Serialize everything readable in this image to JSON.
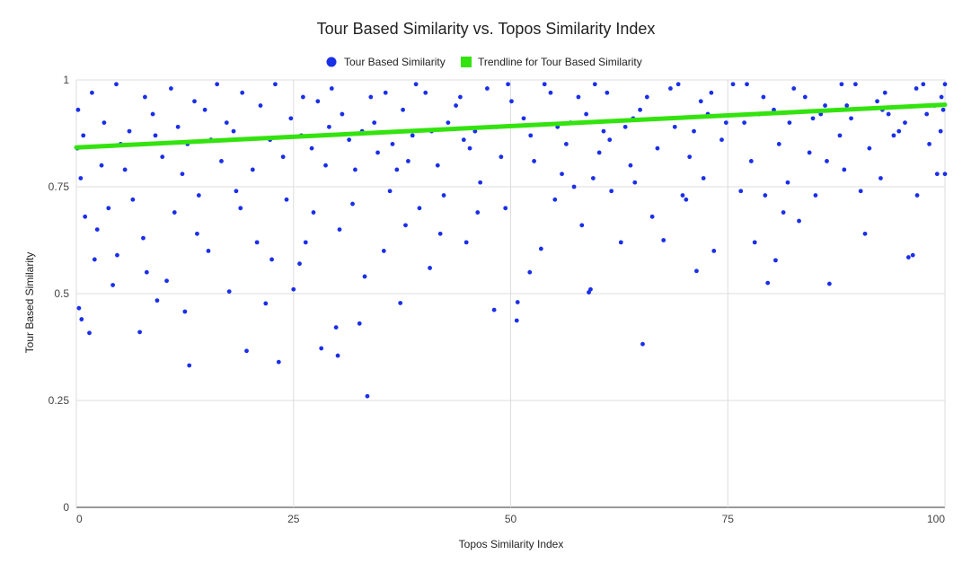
{
  "chart_data": {
    "type": "scatter",
    "title": "Tour Based Similarity vs. Topos Similarity Index",
    "xlabel": "Topos Similarity Index",
    "ylabel": "Tour Based Similarity",
    "xlim": [
      0,
      100
    ],
    "ylim": [
      0,
      1
    ],
    "x_ticks": [
      "0",
      "25",
      "50",
      "75",
      "100"
    ],
    "y_ticks": [
      "0",
      "0.25",
      "0.5",
      "0.75",
      "1"
    ],
    "x_tick_values": [
      0,
      25,
      50,
      75,
      100
    ],
    "y_tick_values": [
      0,
      0.25,
      0.5,
      0.75,
      1
    ],
    "grid": true,
    "legend_position": "top",
    "series": [
      {
        "name": "Tour Based Similarity",
        "color": "#1a2fe8",
        "points": [
          [
            0.3,
            0.466
          ],
          [
            0.6,
            0.44
          ],
          [
            1.5,
            0.408
          ],
          [
            7.3,
            0.41
          ],
          [
            9.3,
            0.484
          ],
          [
            12.5,
            0.458
          ],
          [
            13,
            0.332
          ],
          [
            19.6,
            0.366
          ],
          [
            21.8,
            0.477
          ],
          [
            23.3,
            0.34
          ],
          [
            25,
            0.51
          ],
          [
            28.2,
            0.372
          ],
          [
            29.9,
            0.421
          ],
          [
            30.1,
            0.355
          ],
          [
            32.6,
            0.43
          ],
          [
            33.5,
            0.26
          ],
          [
            33.2,
            0.54
          ],
          [
            37.3,
            0.478
          ],
          [
            48.1,
            0.462
          ],
          [
            50.7,
            0.437
          ],
          [
            50.8,
            0.48
          ],
          [
            52.2,
            0.55
          ],
          [
            59,
            0.503
          ],
          [
            59.2,
            0.51
          ],
          [
            65.2,
            0.382
          ],
          [
            71.4,
            0.553
          ],
          [
            79.6,
            0.525
          ],
          [
            86.7,
            0.523
          ],
          [
            95.8,
            0.585
          ],
          [
            96.3,
            0.59
          ],
          [
            80.5,
            0.578
          ],
          [
            2.1,
            0.58
          ],
          [
            4.2,
            0.52
          ],
          [
            8.1,
            0.55
          ],
          [
            10.4,
            0.53
          ],
          [
            15.2,
            0.6
          ],
          [
            17.6,
            0.505
          ],
          [
            22.5,
            0.58
          ],
          [
            26.4,
            0.62
          ],
          [
            35.4,
            0.6
          ],
          [
            40.7,
            0.56
          ],
          [
            44.9,
            0.62
          ],
          [
            53.5,
            0.605
          ],
          [
            58.2,
            0.66
          ],
          [
            62.7,
            0.62
          ],
          [
            67.6,
            0.625
          ],
          [
            73.4,
            0.6
          ],
          [
            78.1,
            0.62
          ],
          [
            83.2,
            0.67
          ],
          [
            90.8,
            0.64
          ],
          [
            96.8,
            0.73
          ],
          [
            1,
            0.68
          ],
          [
            3.7,
            0.7
          ],
          [
            6.5,
            0.72
          ],
          [
            11.3,
            0.69
          ],
          [
            14.1,
            0.73
          ],
          [
            18.9,
            0.7
          ],
          [
            24.2,
            0.72
          ],
          [
            27.3,
            0.69
          ],
          [
            31.8,
            0.71
          ],
          [
            36.1,
            0.74
          ],
          [
            39.5,
            0.7
          ],
          [
            42.3,
            0.73
          ],
          [
            46.5,
            0.76
          ],
          [
            49.4,
            0.7
          ],
          [
            55.1,
            0.72
          ],
          [
            57.3,
            0.75
          ],
          [
            61.6,
            0.74
          ],
          [
            64.3,
            0.76
          ],
          [
            69.8,
            0.73
          ],
          [
            72.2,
            0.77
          ],
          [
            76.5,
            0.74
          ],
          [
            81.9,
            0.76
          ],
          [
            85.1,
            0.73
          ],
          [
            88.4,
            0.79
          ],
          [
            92.6,
            0.77
          ],
          [
            99.1,
            0.78
          ],
          [
            0.5,
            0.77
          ],
          [
            2.9,
            0.8
          ],
          [
            5.6,
            0.79
          ],
          [
            9.9,
            0.82
          ],
          [
            12.2,
            0.78
          ],
          [
            16.7,
            0.81
          ],
          [
            20.3,
            0.79
          ],
          [
            23.8,
            0.82
          ],
          [
            28.7,
            0.8
          ],
          [
            32.1,
            0.79
          ],
          [
            34.7,
            0.83
          ],
          [
            38.2,
            0.81
          ],
          [
            41.6,
            0.8
          ],
          [
            45.3,
            0.84
          ],
          [
            48.9,
            0.82
          ],
          [
            52.7,
            0.81
          ],
          [
            56.4,
            0.85
          ],
          [
            60.2,
            0.83
          ],
          [
            63.8,
            0.8
          ],
          [
            66.9,
            0.84
          ],
          [
            70.6,
            0.82
          ],
          [
            74.3,
            0.86
          ],
          [
            77.7,
            0.81
          ],
          [
            80.9,
            0.85
          ],
          [
            84.4,
            0.83
          ],
          [
            87.9,
            0.87
          ],
          [
            91.3,
            0.84
          ],
          [
            94.7,
            0.88
          ],
          [
            98.2,
            0.85
          ],
          [
            0.8,
            0.87
          ],
          [
            3.2,
            0.9
          ],
          [
            6.1,
            0.88
          ],
          [
            8.8,
            0.92
          ],
          [
            11.7,
            0.89
          ],
          [
            14.8,
            0.93
          ],
          [
            17.3,
            0.9
          ],
          [
            21.2,
            0.94
          ],
          [
            24.7,
            0.91
          ],
          [
            27.8,
            0.95
          ],
          [
            30.6,
            0.92
          ],
          [
            33.9,
            0.96
          ],
          [
            37.6,
            0.93
          ],
          [
            40.2,
            0.97
          ],
          [
            43.7,
            0.94
          ],
          [
            47.3,
            0.98
          ],
          [
            50.1,
            0.95
          ],
          [
            53.9,
            0.99
          ],
          [
            57.8,
            0.96
          ],
          [
            61.1,
            0.97
          ],
          [
            64.9,
            0.93
          ],
          [
            68.4,
            0.98
          ],
          [
            71.9,
            0.95
          ],
          [
            75.6,
            0.99
          ],
          [
            79.1,
            0.96
          ],
          [
            82.6,
            0.98
          ],
          [
            86.2,
            0.94
          ],
          [
            89.7,
            0.99
          ],
          [
            93.1,
            0.97
          ],
          [
            96.7,
            0.98
          ],
          [
            99.6,
            0.96
          ],
          [
            1.8,
            0.97
          ],
          [
            4.6,
            0.99
          ],
          [
            7.9,
            0.96
          ],
          [
            10.9,
            0.98
          ],
          [
            13.6,
            0.95
          ],
          [
            16.2,
            0.99
          ],
          [
            19.1,
            0.97
          ],
          [
            22.9,
            0.99
          ],
          [
            26.1,
            0.96
          ],
          [
            29.4,
            0.98
          ],
          [
            35.6,
            0.97
          ],
          [
            39.1,
            0.99
          ],
          [
            44.2,
            0.96
          ],
          [
            49.7,
            0.99
          ],
          [
            54.6,
            0.97
          ],
          [
            59.7,
            0.99
          ],
          [
            65.7,
            0.96
          ],
          [
            69.3,
            0.99
          ],
          [
            73.1,
            0.97
          ],
          [
            77.2,
            0.99
          ],
          [
            83.9,
            0.96
          ],
          [
            88.1,
            0.99
          ],
          [
            92.2,
            0.95
          ],
          [
            97.5,
            0.99
          ],
          [
            100,
            0.99
          ],
          [
            99.8,
            0.93
          ],
          [
            99.5,
            0.88
          ],
          [
            100,
            0.78
          ],
          [
            0.2,
            0.93
          ],
          [
            0.1,
            0.84
          ],
          [
            18.4,
            0.74
          ],
          [
            36.9,
            0.79
          ],
          [
            55.9,
            0.78
          ],
          [
            66.3,
            0.68
          ],
          [
            70.2,
            0.72
          ],
          [
            79.3,
            0.73
          ],
          [
            81.4,
            0.69
          ],
          [
            86.4,
            0.81
          ],
          [
            90.3,
            0.74
          ],
          [
            94.1,
            0.87
          ],
          [
            97.9,
            0.92
          ],
          [
            59.5,
            0.77
          ],
          [
            46.2,
            0.69
          ],
          [
            41.9,
            0.64
          ],
          [
            37.9,
            0.66
          ],
          [
            30.3,
            0.65
          ],
          [
            25.7,
            0.57
          ],
          [
            20.8,
            0.62
          ],
          [
            13.9,
            0.64
          ],
          [
            7.7,
            0.63
          ],
          [
            4.7,
            0.59
          ],
          [
            2.4,
            0.65
          ],
          [
            61.4,
            0.86
          ],
          [
            63.2,
            0.89
          ],
          [
            67.8,
            0.91
          ],
          [
            71.1,
            0.88
          ],
          [
            74.8,
            0.9
          ],
          [
            78.6,
            0.92
          ],
          [
            82.1,
            0.9
          ],
          [
            85.7,
            0.92
          ],
          [
            89.2,
            0.91
          ],
          [
            92.8,
            0.93
          ],
          [
            95.4,
            0.9
          ],
          [
            98.8,
            0.94
          ],
          [
            15.5,
            0.86
          ],
          [
            18.1,
            0.88
          ],
          [
            25.9,
            0.87
          ],
          [
            29.1,
            0.89
          ],
          [
            31.4,
            0.86
          ],
          [
            34.3,
            0.9
          ],
          [
            38.7,
            0.87
          ],
          [
            42.8,
            0.9
          ],
          [
            45.9,
            0.88
          ],
          [
            51.5,
            0.91
          ],
          [
            55.4,
            0.89
          ],
          [
            58.7,
            0.92
          ],
          [
            5.1,
            0.85
          ],
          [
            9.1,
            0.87
          ],
          [
            12.8,
            0.85
          ],
          [
            22.3,
            0.86
          ],
          [
            27.1,
            0.84
          ],
          [
            32.9,
            0.88
          ],
          [
            36.4,
            0.85
          ],
          [
            40.9,
            0.88
          ],
          [
            44.6,
            0.86
          ],
          [
            48.4,
            0.89
          ],
          [
            52.3,
            0.87
          ],
          [
            56.9,
            0.9
          ],
          [
            60.7,
            0.88
          ],
          [
            64.1,
            0.91
          ],
          [
            68.9,
            0.89
          ],
          [
            72.7,
            0.92
          ],
          [
            76.9,
            0.9
          ],
          [
            80.3,
            0.93
          ],
          [
            84.8,
            0.91
          ],
          [
            88.7,
            0.94
          ],
          [
            93.5,
            0.92
          ]
        ]
      },
      {
        "name": "Trendline for Tour Based Similarity",
        "color": "#33e30e",
        "type": "line",
        "x": [
          0,
          100
        ],
        "y": [
          0.842,
          0.942
        ]
      }
    ]
  }
}
